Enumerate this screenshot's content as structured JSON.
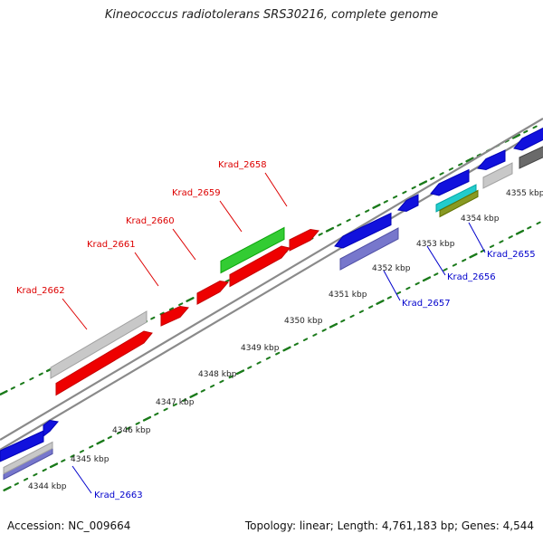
{
  "title": "Kineococcus radiotolerans SRS30216, complete genome",
  "footer": {
    "accession": "Accession: NC_009664",
    "stats": "Topology: linear; Length: 4,761,183 bp; Genes: 4,544"
  },
  "colors": {
    "axis": "#8a8a8a",
    "tick": "#1a7a1a",
    "label_red": "#dd0000",
    "label_blue": "#0000cc",
    "red": "#ee0000",
    "green": "#33cc33",
    "blue": "#1111dd",
    "purple": "#7777cc",
    "grey": "#c8c8c8",
    "darkgrey": "#6a6a6a",
    "cyan": "#22cccc",
    "olive": "#889922"
  },
  "kbp_labels": [
    {
      "kbp": 4344,
      "text": "4344 kbp"
    },
    {
      "kbp": 4345,
      "text": "4345 kbp"
    },
    {
      "kbp": 4346,
      "text": "4346 kbp"
    },
    {
      "kbp": 4347,
      "text": "4347 kbp"
    },
    {
      "kbp": 4348,
      "text": "4348 kbp"
    },
    {
      "kbp": 4349,
      "text": "4349 kbp"
    },
    {
      "kbp": 4350,
      "text": "4350 kbp"
    },
    {
      "kbp": 4351,
      "text": "4351 kbp"
    },
    {
      "kbp": 4352,
      "text": "4352 kbp"
    },
    {
      "kbp": 4353,
      "text": "4353 kbp"
    },
    {
      "kbp": 4354,
      "text": "4354 kbp"
    },
    {
      "kbp": 4355,
      "text": "4355 kbp"
    }
  ],
  "gene_labels": [
    {
      "text": "Krad_2658",
      "color": "red"
    },
    {
      "text": "Krad_2659",
      "color": "red"
    },
    {
      "text": "Krad_2660",
      "color": "red"
    },
    {
      "text": "Krad_2661",
      "color": "red"
    },
    {
      "text": "Krad_2662",
      "color": "red"
    },
    {
      "text": "Krad_2655",
      "color": "blue"
    },
    {
      "text": "Krad_2656",
      "color": "blue"
    },
    {
      "text": "Krad_2657",
      "color": "blue"
    },
    {
      "text": "Krad_2663",
      "color": "blue"
    }
  ]
}
